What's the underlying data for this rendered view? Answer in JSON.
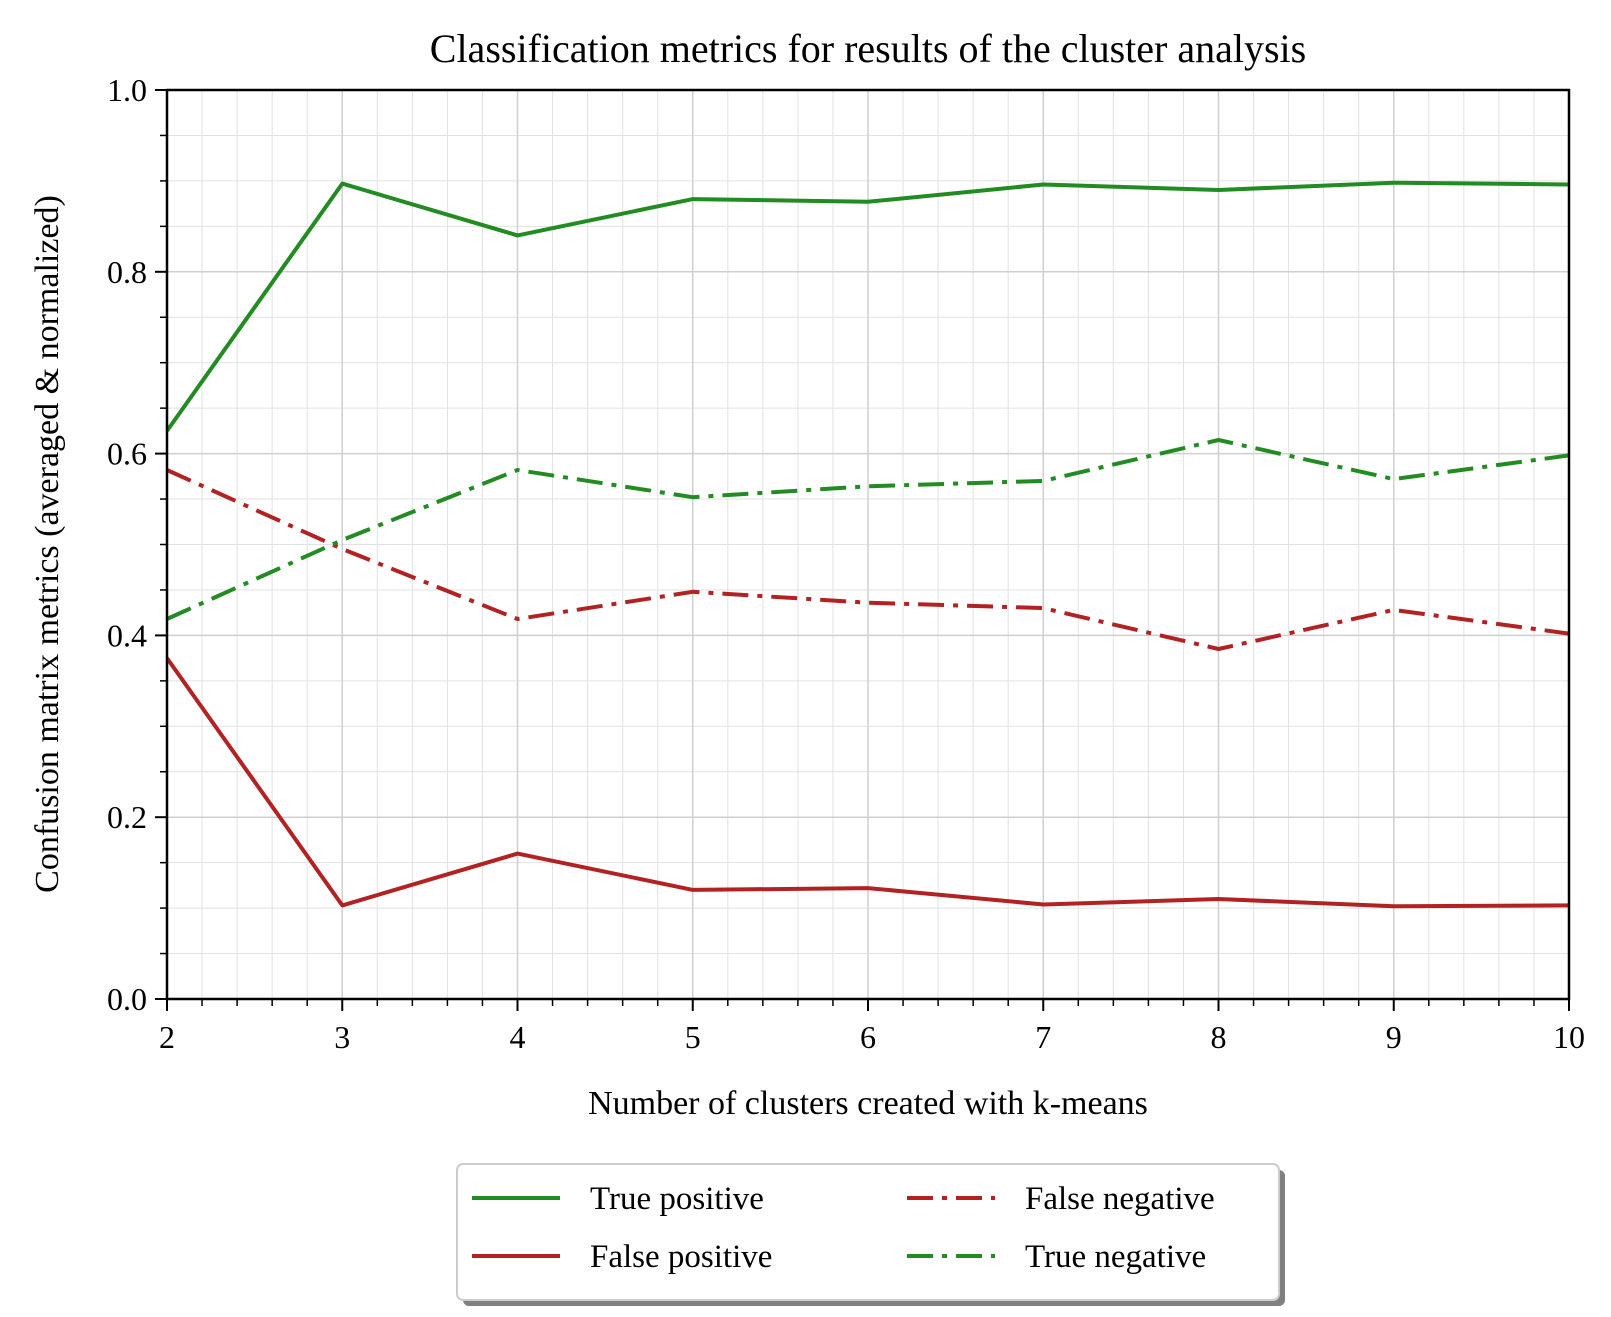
{
  "chart_data": {
    "type": "line",
    "title": "Classification metrics for results of the cluster analysis",
    "xlabel": "Number of clusters created with k-means",
    "ylabel": "Confusion matrix metrics (averaged & normalized)",
    "xlim": [
      2,
      10
    ],
    "ylim": [
      0.0,
      1.0
    ],
    "xticks": [
      2,
      3,
      4,
      5,
      6,
      7,
      8,
      9,
      10
    ],
    "yticks": [
      0.0,
      0.2,
      0.4,
      0.6,
      0.8,
      1.0
    ],
    "xtick_labels": [
      "2",
      "3",
      "4",
      "5",
      "6",
      "7",
      "8",
      "9",
      "10"
    ],
    "ytick_labels": [
      "0.0",
      "0.2",
      "0.4",
      "0.6",
      "0.8",
      "1.0"
    ],
    "grid": true,
    "legend_position": "bottom-center",
    "x": [
      2,
      3,
      4,
      5,
      6,
      7,
      8,
      9,
      10
    ],
    "series": [
      {
        "name": "True positive",
        "style": "solid",
        "color": "#228b22",
        "values": [
          0.625,
          0.897,
          0.84,
          0.88,
          0.877,
          0.896,
          0.89,
          0.898,
          0.896
        ]
      },
      {
        "name": "False positive",
        "style": "solid",
        "color": "#b22222",
        "values": [
          0.375,
          0.103,
          0.16,
          0.12,
          0.122,
          0.104,
          0.11,
          0.102,
          0.103
        ]
      },
      {
        "name": "False negative",
        "style": "dashdot",
        "color": "#b22222",
        "values": [
          0.582,
          0.495,
          0.418,
          0.448,
          0.436,
          0.43,
          0.385,
          0.428,
          0.402
        ]
      },
      {
        "name": "True negative",
        "style": "dashdot",
        "color": "#228b22",
        "values": [
          0.418,
          0.505,
          0.582,
          0.552,
          0.564,
          0.57,
          0.615,
          0.572,
          0.598
        ]
      }
    ],
    "legend_order": [
      0,
      2,
      1,
      3
    ]
  }
}
